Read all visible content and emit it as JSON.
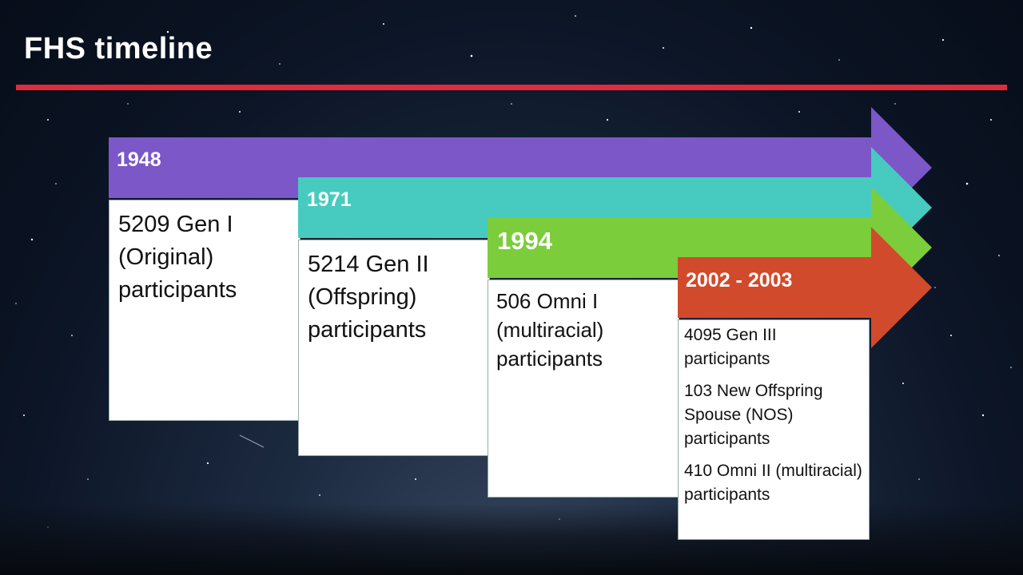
{
  "slide": {
    "title": "FHS timeline",
    "accent_color": "#e02b3a"
  },
  "timeline": [
    {
      "year": "1948",
      "color": "#7b57c8",
      "entries": [
        "5209 Gen I (Original) participants"
      ]
    },
    {
      "year": "1971",
      "color": "#47cbc0",
      "entries": [
        "5214 Gen II (Offspring) participants"
      ]
    },
    {
      "year": "1994",
      "color": "#7ccd3c",
      "entries": [
        "506 Omni I (multiracial) participants"
      ]
    },
    {
      "year": "2002 - 2003",
      "color": "#d24a2c",
      "entries": [
        "4095 Gen III participants",
        "103 New Offspring Spouse (NOS) participants",
        "410 Omni II (multiracial) participants"
      ]
    }
  ]
}
